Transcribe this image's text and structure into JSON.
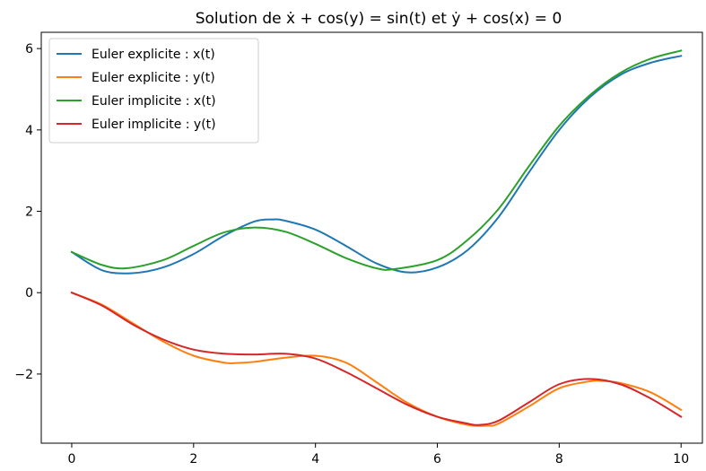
{
  "chart_data": {
    "type": "line",
    "title": "Solution de ẋ + cos(y) = sin(t) et ẏ + cos(x) = 0",
    "xlabel": "",
    "ylabel": "",
    "xlim": [
      -0.5,
      10.35
    ],
    "ylim": [
      -3.7,
      6.4
    ],
    "xticks": [
      0,
      2,
      4,
      6,
      8,
      10
    ],
    "yticks": [
      -2,
      0,
      2,
      4,
      6
    ],
    "ytick_labels": [
      "−2",
      "0",
      "2",
      "4",
      "6"
    ],
    "grid": false,
    "legend_position": "upper-left",
    "series": [
      {
        "name": "Euler explicite : x(t)",
        "color": "#1f77b4",
        "x": [
          0,
          0.5,
          1,
          1.5,
          2,
          2.5,
          3,
          3.3,
          3.5,
          4,
          4.5,
          5,
          5.5,
          6,
          6.5,
          7,
          7.5,
          8,
          8.5,
          9,
          9.5,
          10
        ],
        "y": [
          1.0,
          0.55,
          0.48,
          0.62,
          0.95,
          1.4,
          1.75,
          1.8,
          1.77,
          1.55,
          1.15,
          0.72,
          0.5,
          0.62,
          1.05,
          1.85,
          2.95,
          4.0,
          4.8,
          5.35,
          5.65,
          5.82
        ]
      },
      {
        "name": "Euler explicite : y(t)",
        "color": "#ff7f0e",
        "x": [
          0,
          0.5,
          1,
          1.5,
          2,
          2.5,
          2.7,
          3,
          3.5,
          4,
          4.5,
          5,
          5.5,
          6,
          6.5,
          6.8,
          7,
          7.5,
          8,
          8.5,
          8.7,
          9,
          9.5,
          10
        ],
        "y": [
          0.0,
          -0.3,
          -0.75,
          -1.2,
          -1.55,
          -1.72,
          -1.73,
          -1.7,
          -1.6,
          -1.55,
          -1.72,
          -2.2,
          -2.7,
          -3.05,
          -3.25,
          -3.27,
          -3.22,
          -2.8,
          -2.35,
          -2.18,
          -2.17,
          -2.22,
          -2.45,
          -2.88
        ]
      },
      {
        "name": "Euler implicite : x(t)",
        "color": "#2ca02c",
        "x": [
          0,
          0.5,
          0.9,
          1.5,
          2,
          2.5,
          3,
          3.5,
          4,
          4.5,
          5,
          5.3,
          6,
          6.5,
          7,
          7.5,
          8,
          8.5,
          9,
          9.5,
          10
        ],
        "y": [
          1.0,
          0.68,
          0.6,
          0.8,
          1.15,
          1.48,
          1.6,
          1.5,
          1.2,
          0.85,
          0.6,
          0.58,
          0.8,
          1.3,
          2.05,
          3.1,
          4.1,
          4.85,
          5.4,
          5.75,
          5.95
        ]
      },
      {
        "name": "Euler implicite : y(t)",
        "color": "#d62728",
        "x": [
          0,
          0.5,
          1,
          1.5,
          2,
          2.5,
          3,
          3.5,
          4,
          4.5,
          5,
          5.5,
          6,
          6.5,
          6.7,
          7,
          7.5,
          8,
          8.5,
          9,
          9.5,
          10
        ],
        "y": [
          0.0,
          -0.32,
          -0.78,
          -1.15,
          -1.4,
          -1.5,
          -1.52,
          -1.5,
          -1.62,
          -1.95,
          -2.35,
          -2.75,
          -3.05,
          -3.22,
          -3.25,
          -3.15,
          -2.7,
          -2.25,
          -2.12,
          -2.25,
          -2.6,
          -3.05
        ]
      }
    ]
  }
}
